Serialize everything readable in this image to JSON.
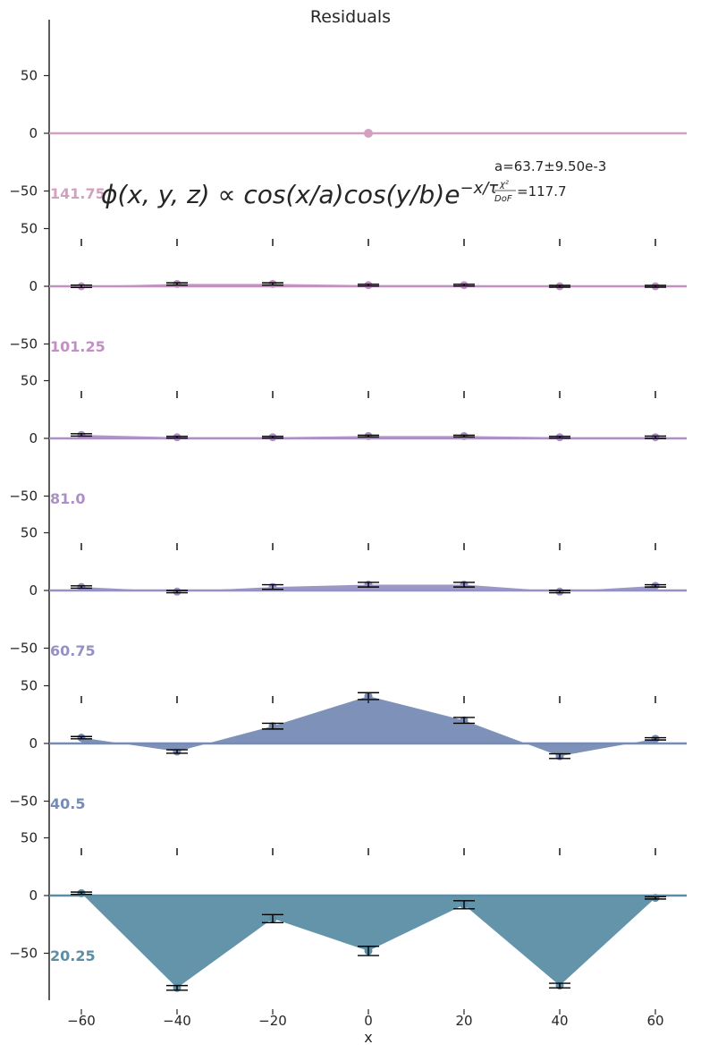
{
  "chart_data": {
    "type": "area",
    "title": "Residuals",
    "xlabel": "x",
    "ylabel": "",
    "xlim": [
      -67,
      67
    ],
    "ylim": [
      -75,
      100
    ],
    "x": [
      -60,
      -40,
      -20,
      0,
      20,
      40,
      60
    ],
    "x_ticks": [
      -60,
      -40,
      -20,
      0,
      20,
      40,
      60
    ],
    "x_tick_labels": [
      "−60",
      "−40",
      "−20",
      "0",
      "20",
      "40",
      "60"
    ],
    "y_ticks": [
      -50,
      0,
      50
    ],
    "y_tick_labels": [
      "−50",
      "0",
      "50"
    ],
    "grid": false,
    "series": [
      {
        "name": "141.75",
        "color": "#d4a0c0",
        "values": [
          0,
          0,
          0,
          0,
          0,
          0,
          0
        ],
        "errors": [
          0,
          0,
          0,
          0,
          0,
          0,
          0
        ],
        "single_point_x": 0
      },
      {
        "name": "101.25",
        "color": "#c290c2",
        "values": [
          0,
          2,
          2,
          1,
          1,
          0,
          0
        ],
        "errors": [
          1,
          1,
          1,
          0.5,
          0.5,
          0.5,
          0.5
        ]
      },
      {
        "name": "81.0",
        "color": "#ad8fc6",
        "values": [
          3,
          1,
          1,
          2,
          2,
          1,
          1
        ],
        "errors": [
          1,
          0.5,
          0.5,
          0.5,
          0.5,
          0.5,
          1
        ]
      },
      {
        "name": "60.75",
        "color": "#9691c5",
        "values": [
          3,
          -1,
          3,
          5,
          5,
          -1,
          4
        ],
        "errors": [
          1,
          1,
          2,
          2,
          2,
          1,
          1
        ]
      },
      {
        "name": "40.5",
        "color": "#768bb5",
        "values": [
          5,
          -7,
          15,
          41,
          20,
          -11,
          4
        ],
        "errors": [
          1,
          1.5,
          2.5,
          3,
          2.5,
          2,
          1
        ]
      },
      {
        "name": "20.25",
        "color": "#5b8ea5",
        "values": [
          2,
          -80,
          -20,
          -48,
          -8,
          -78,
          -2
        ],
        "errors": [
          1,
          2,
          3.5,
          4,
          3.5,
          2,
          1
        ]
      }
    ],
    "annotation": {
      "formula": "ϕ(x, y, z) ∝ cos(x/a)cos(y/b)e",
      "formula_exponent": "−x/τ",
      "fit_param": "a=63.7±9.50e-3",
      "chi2_num": "χ²",
      "chi2_den": "DoF",
      "chi2_value": "=117.7"
    }
  }
}
